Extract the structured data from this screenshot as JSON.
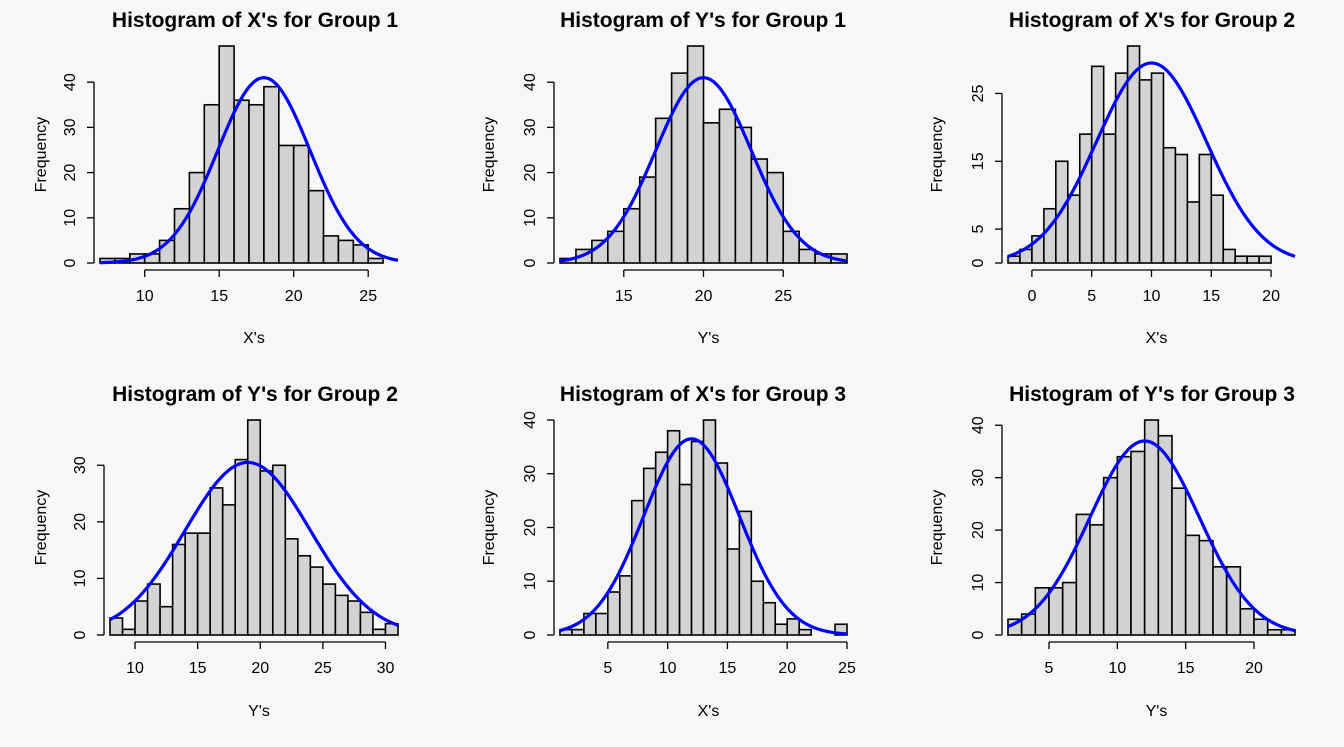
{
  "chart_data": [
    {
      "type": "bar",
      "title": "Histogram of X's for Group 1",
      "xlabel": "X's",
      "ylabel": "Frequency",
      "bin_start": 7,
      "bin_width": 1,
      "counts": [
        1,
        1,
        2,
        2,
        5,
        12,
        20,
        35,
        48,
        36,
        35,
        39,
        26,
        26,
        16,
        6,
        5,
        4,
        1
      ],
      "xlim": [
        7,
        27
      ],
      "ylim": [
        0,
        48
      ],
      "x_ticks": [
        10,
        15,
        20,
        25
      ],
      "y_ticks": [
        0,
        10,
        20,
        30,
        40
      ],
      "curve": {
        "color": "#0000ff",
        "mean": 18,
        "sd": 3.1,
        "peak": 41
      }
    },
    {
      "type": "bar",
      "title": "Histogram of Y's for Group 1",
      "xlabel": "Y's",
      "ylabel": "Frequency",
      "bin_start": 11,
      "bin_width": 1,
      "counts": [
        1,
        3,
        5,
        7,
        12,
        19,
        32,
        42,
        48,
        31,
        34,
        30,
        23,
        20,
        7,
        3,
        2,
        2
      ],
      "xlim": [
        11,
        29
      ],
      "ylim": [
        0,
        48
      ],
      "x_ticks": [
        15,
        20,
        25
      ],
      "y_ticks": [
        0,
        10,
        20,
        30,
        40
      ],
      "curve": {
        "color": "#0000ff",
        "mean": 20,
        "sd": 3.0,
        "peak": 41
      }
    },
    {
      "type": "bar",
      "title": "Histogram of X's for Group 2",
      "xlabel": "X's",
      "ylabel": "Frequency",
      "bin_start": -2,
      "bin_width": 1,
      "counts": [
        1,
        2,
        4,
        8,
        15,
        10,
        19,
        29,
        19,
        28,
        32,
        27,
        28,
        17,
        16,
        9,
        16,
        10,
        2,
        1,
        1,
        1
      ],
      "xlim": [
        -2,
        22
      ],
      "ylim": [
        0,
        32
      ],
      "x_ticks": [
        0,
        5,
        10,
        15,
        20
      ],
      "y_ticks": [
        0,
        5,
        15,
        25
      ],
      "curve": {
        "color": "#0000ff",
        "mean": 10,
        "sd": 4.6,
        "peak": 29.5
      }
    },
    {
      "type": "bar",
      "title": "Histogram of Y's for Group 2",
      "xlabel": "Y's",
      "ylabel": "Frequency",
      "bin_start": 8,
      "bin_width": 1,
      "counts": [
        3,
        1,
        6,
        9,
        5,
        16,
        18,
        18,
        26,
        23,
        31,
        38,
        29,
        30,
        17,
        14,
        12,
        9,
        7,
        6,
        4,
        1,
        2
      ],
      "xlim": [
        8,
        31
      ],
      "ylim": [
        0,
        38
      ],
      "x_ticks": [
        10,
        15,
        20,
        25,
        30
      ],
      "y_ticks": [
        0,
        10,
        20,
        30
      ],
      "curve": {
        "color": "#0000ff",
        "mean": 19,
        "sd": 5.0,
        "peak": 30.5
      }
    },
    {
      "type": "bar",
      "title": "Histogram of X's for Group 3",
      "xlabel": "X's",
      "ylabel": "Frequency",
      "bin_start": 1,
      "bin_width": 1,
      "counts": [
        1,
        1,
        4,
        4,
        8,
        11,
        25,
        31,
        34,
        38,
        28,
        36,
        40,
        32,
        16,
        23,
        10,
        6,
        2,
        3,
        1,
        0,
        0,
        2
      ],
      "xlim": [
        1,
        25
      ],
      "ylim": [
        0,
        40
      ],
      "x_ticks": [
        5,
        10,
        15,
        20,
        25
      ],
      "y_ticks": [
        0,
        10,
        20,
        30,
        40
      ],
      "curve": {
        "color": "#0000ff",
        "mean": 12,
        "sd": 4.0,
        "peak": 36.5
      }
    },
    {
      "type": "bar",
      "title": "Histogram of Y's for Group 3",
      "xlabel": "Y's",
      "ylabel": "Frequency",
      "bin_start": 2,
      "bin_width": 1,
      "counts": [
        3,
        4,
        9,
        9,
        10,
        23,
        21,
        30,
        34,
        35,
        41,
        38,
        28,
        19,
        18,
        13,
        13,
        5,
        3,
        1,
        1
      ],
      "xlim": [
        2,
        23
      ],
      "ylim": [
        0,
        41
      ],
      "x_ticks": [
        5,
        10,
        15,
        20
      ],
      "y_ticks": [
        0,
        10,
        20,
        30,
        40
      ],
      "curve": {
        "color": "#0000ff",
        "mean": 12,
        "sd": 4.0,
        "peak": 37
      }
    }
  ]
}
